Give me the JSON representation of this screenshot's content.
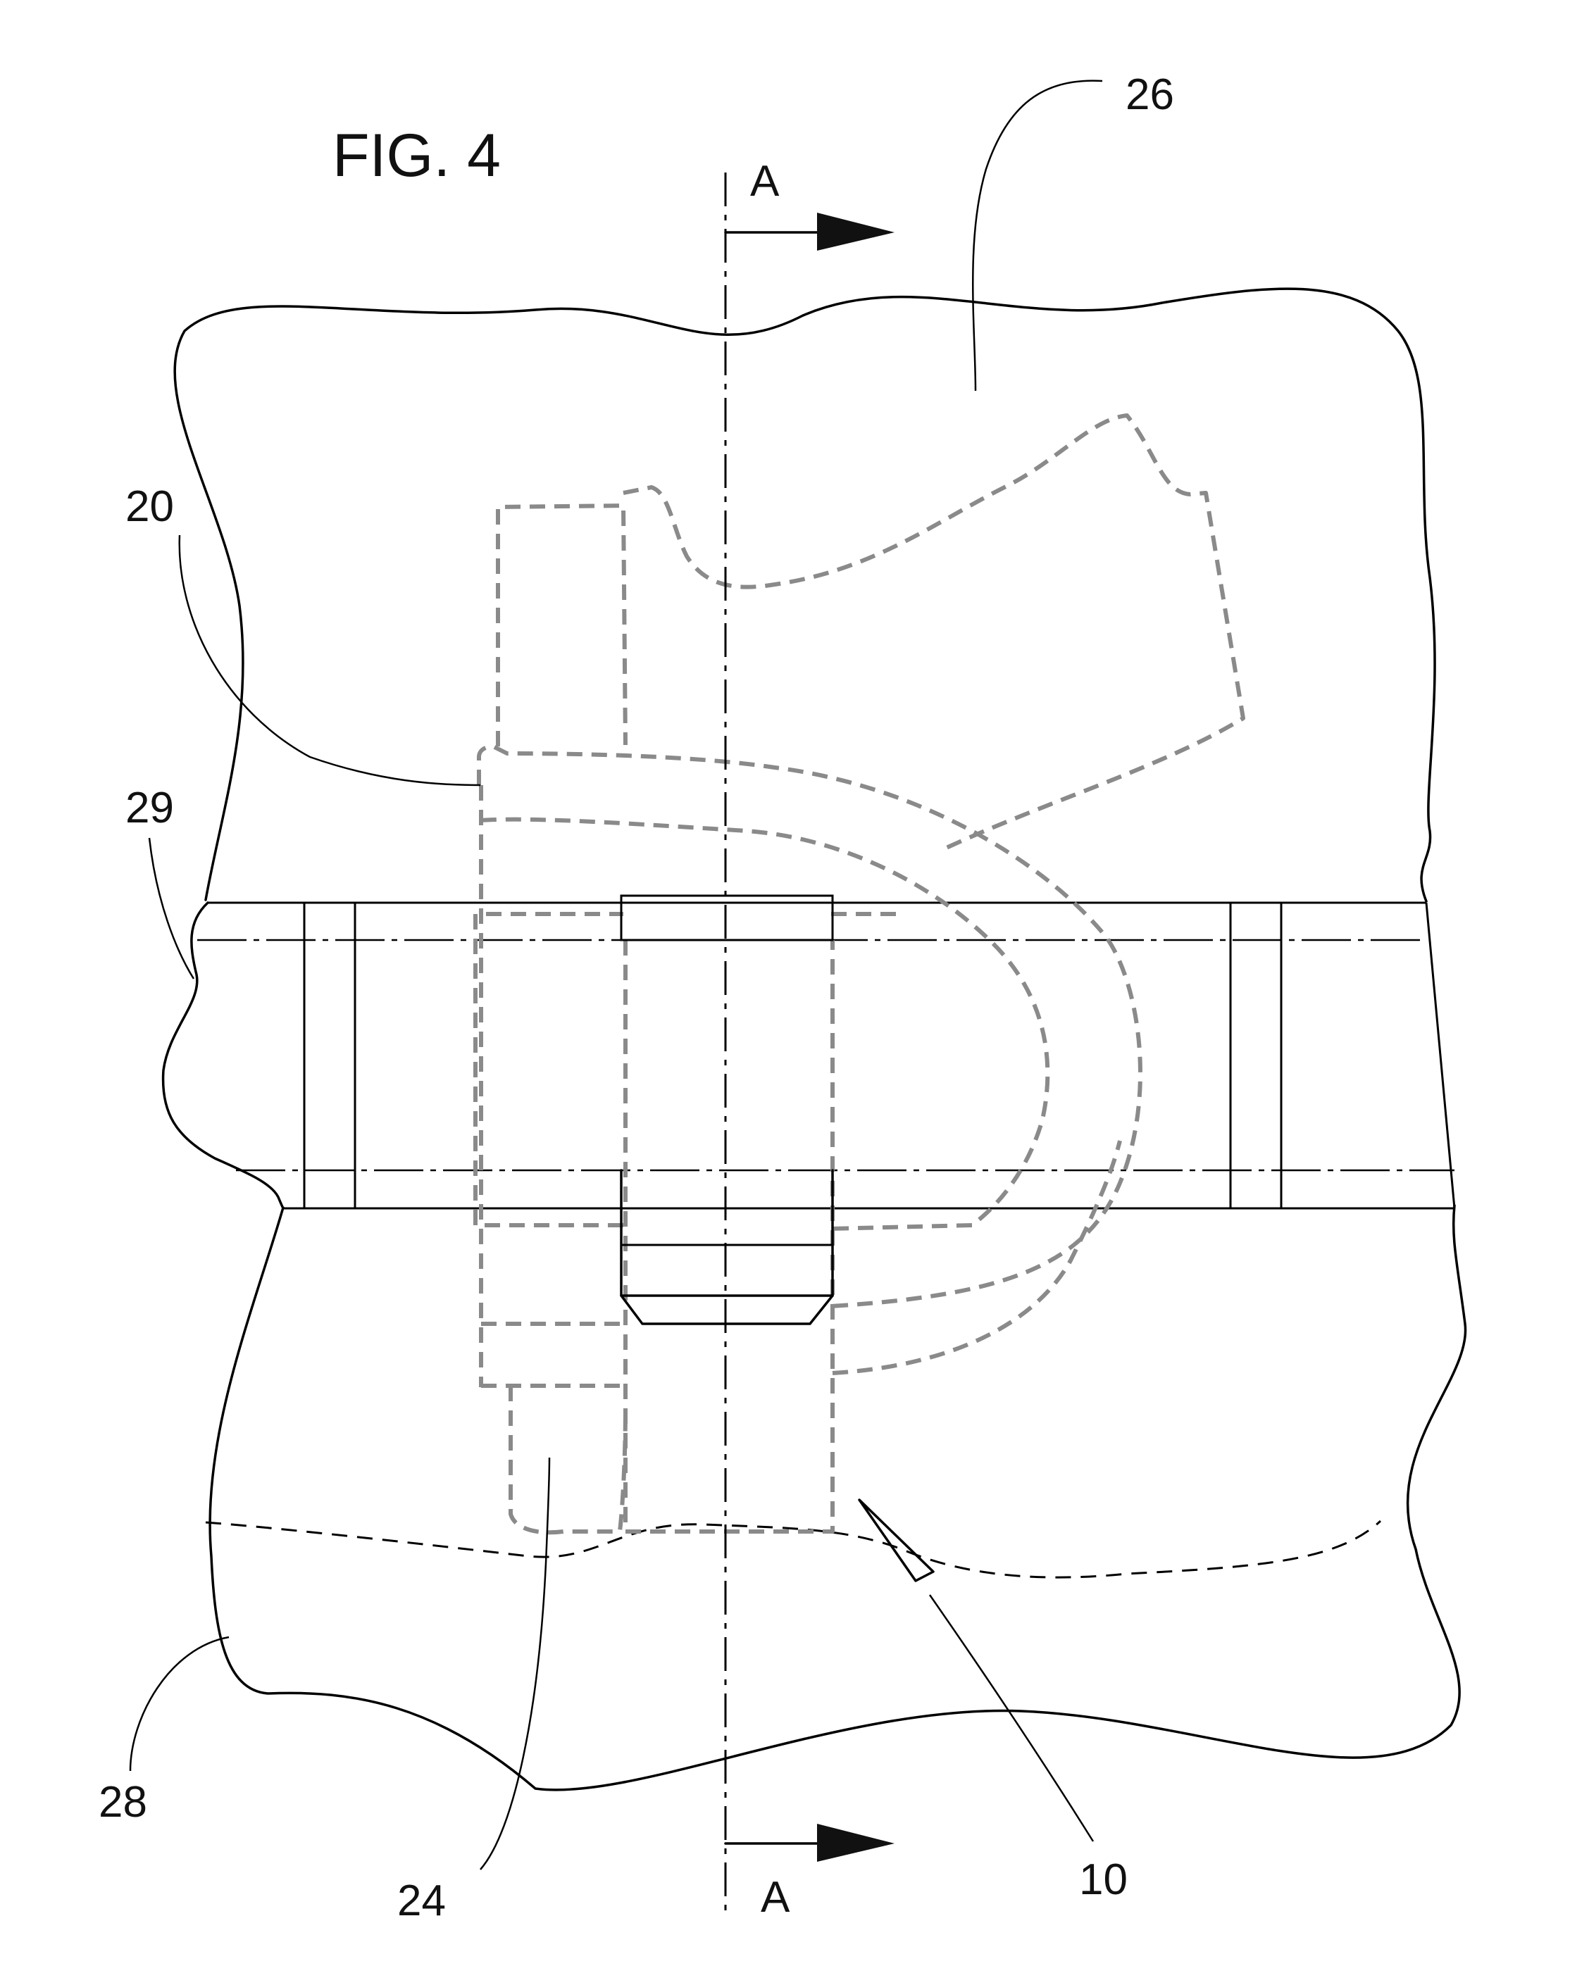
{
  "figure": {
    "title": "FIG. 4",
    "section_marker_top": "A",
    "section_marker_bottom": "A"
  },
  "reference_numerals": {
    "r10": "10",
    "r20": "20",
    "r24": "24",
    "r26": "26",
    "r28": "28",
    "r29": "29"
  },
  "colors": {
    "line": "#000000",
    "hidden_line": "#8a8a8a",
    "background": "#ffffff"
  }
}
